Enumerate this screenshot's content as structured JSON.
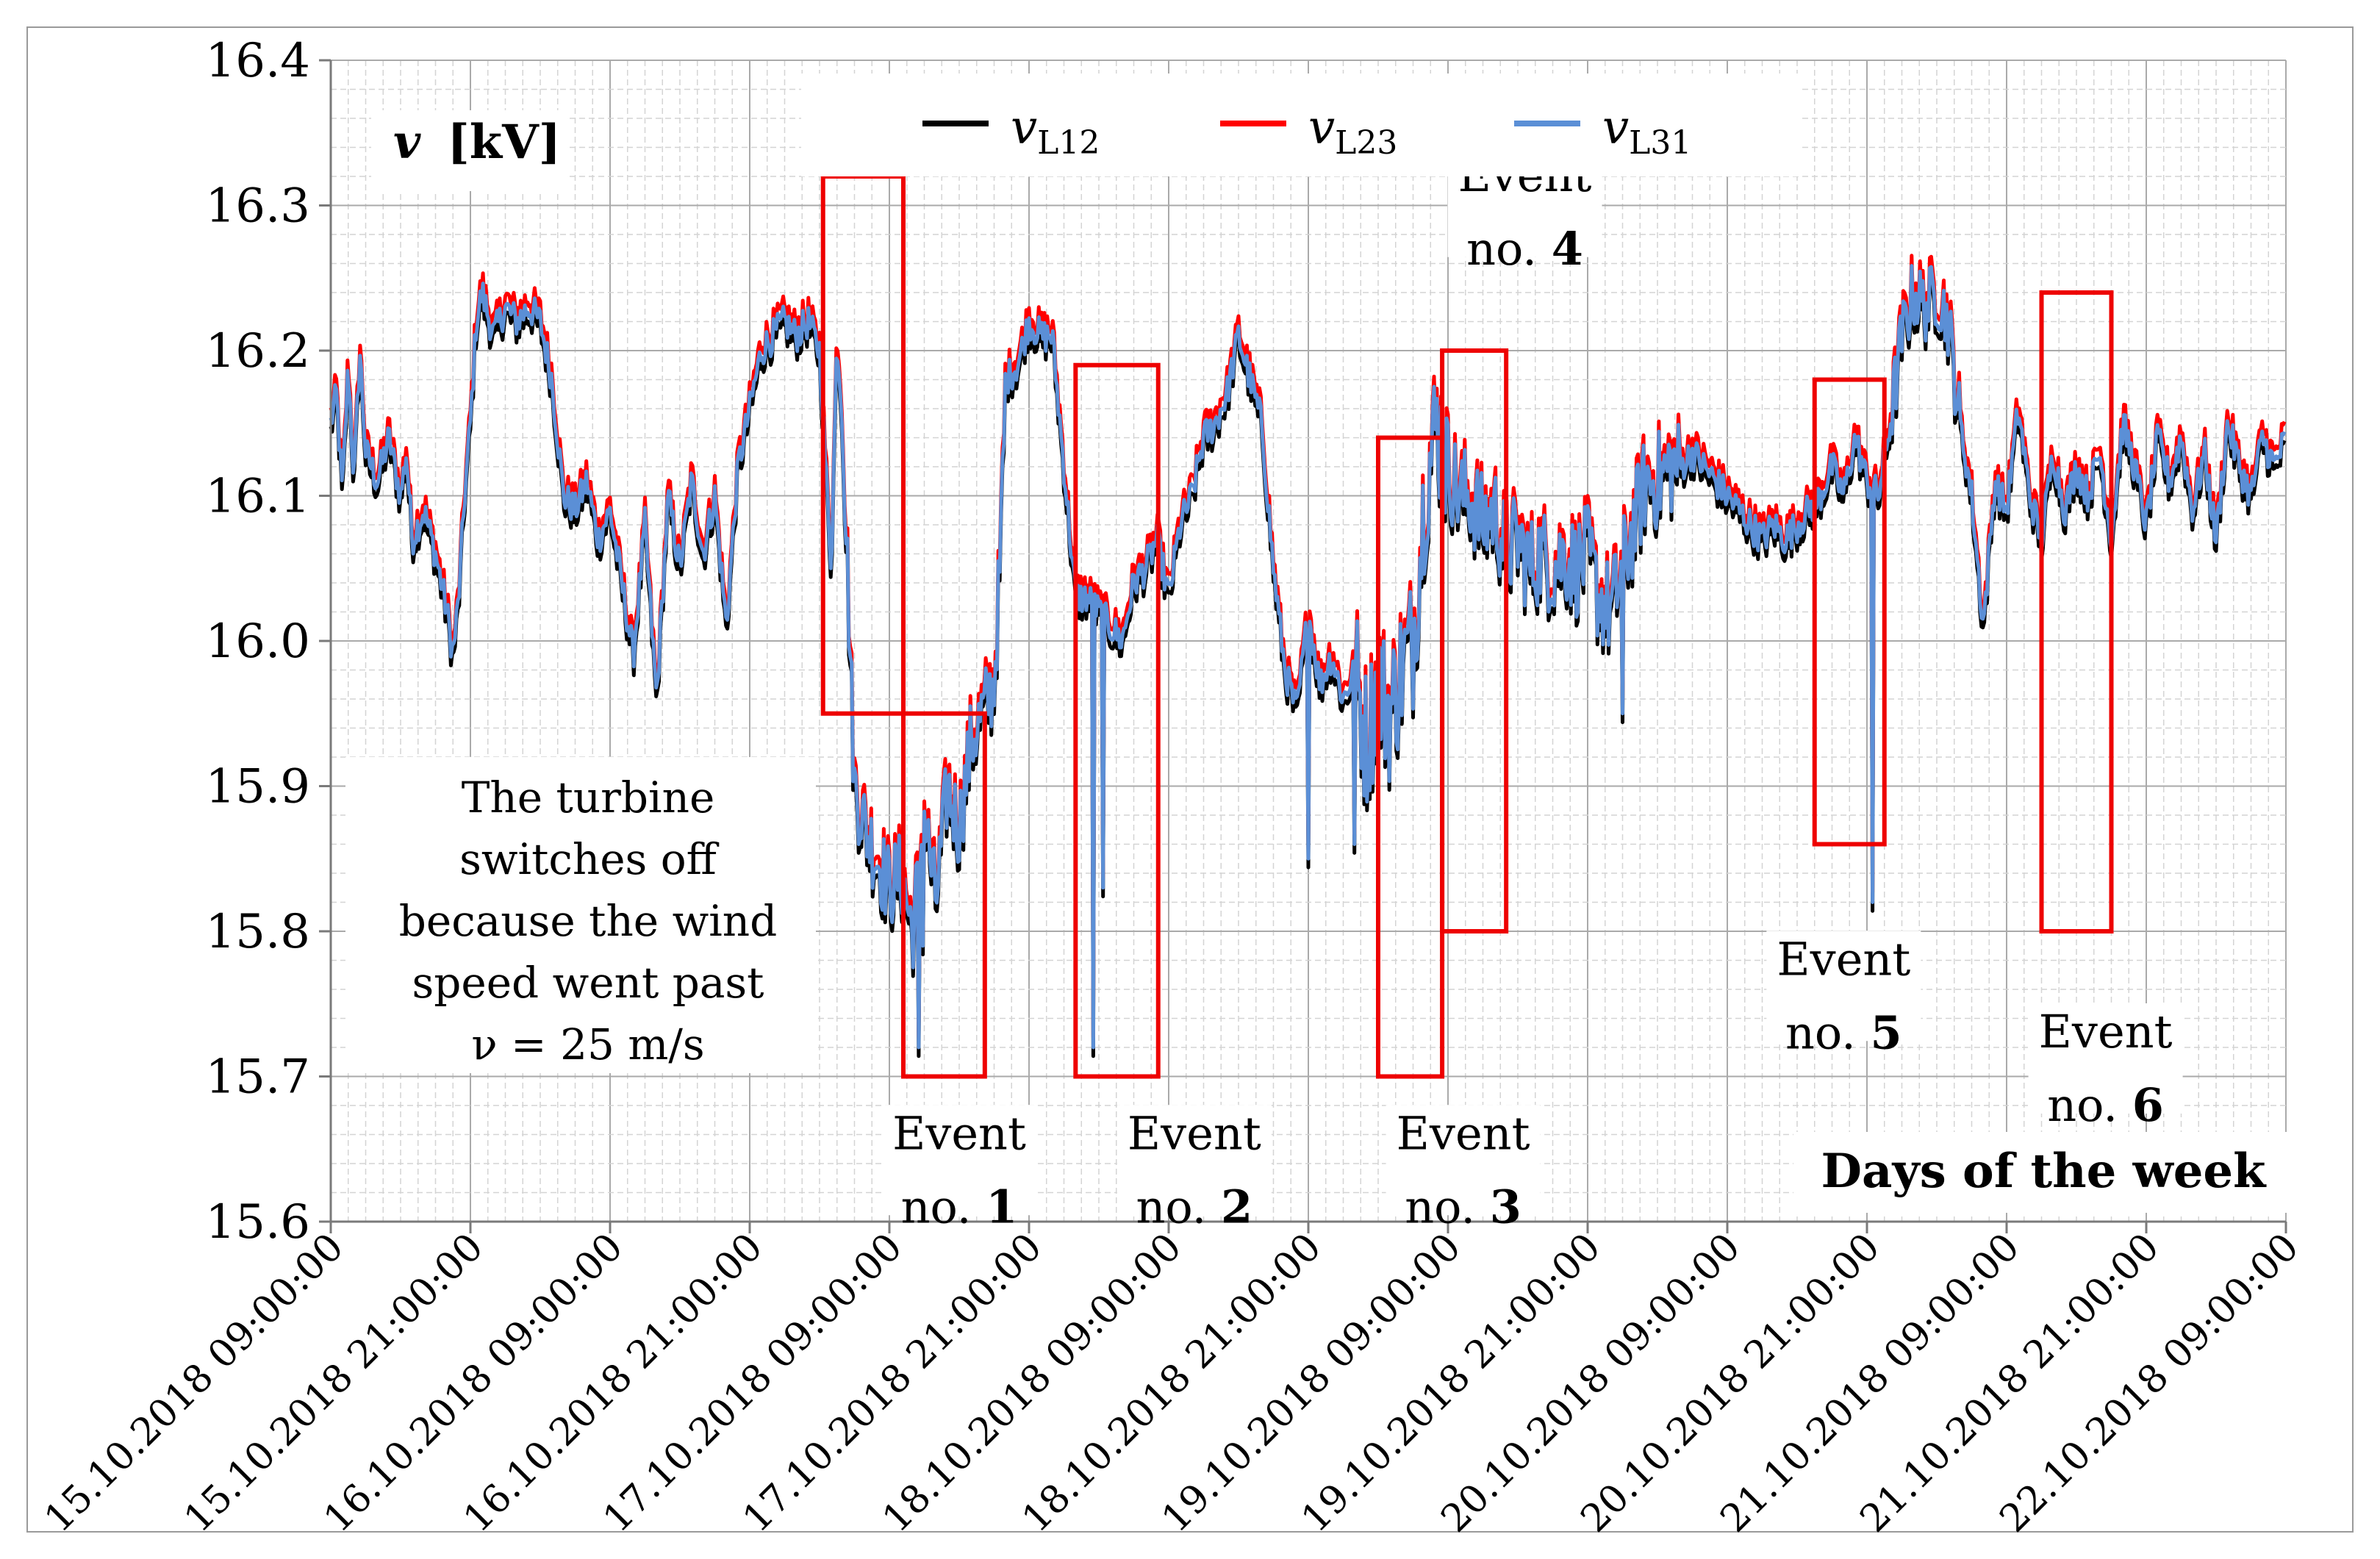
{
  "chart_data": {
    "type": "line",
    "title": "",
    "ylabel_var": "v",
    "ylabel_unit": "[kV]",
    "xlabel": "Days of the week",
    "ylim": [
      15.6,
      16.4
    ],
    "y_ticks": [
      "15.6",
      "15.7",
      "15.8",
      "15.9",
      "16.0",
      "16.1",
      "16.2",
      "16.3",
      "16.4"
    ],
    "x_range_hours": [
      0,
      168
    ],
    "x_ticks": [
      "15.10.2018 09:00:00",
      "15.10.2018 21:00:00",
      "16.10.2018 09:00:00",
      "16.10.2018 21:00:00",
      "17.10.2018 09:00:00",
      "17.10.2018 21:00:00",
      "18.10.2018 09:00:00",
      "18.10.2018 21:00:00",
      "19.10.2018 09:00:00",
      "19.10.2018 21:00:00",
      "20.10.2018 09:00:00",
      "20.10.2018 21:00:00",
      "21.10.2018 09:00:00",
      "21.10.2018 21:00:00",
      "22.10.2018 09:00:00"
    ],
    "legend_location": "top-center",
    "series": [
      {
        "name_main": "v",
        "name_sub": "L12",
        "color": "#000000"
      },
      {
        "name_main": "v",
        "name_sub": "L23",
        "color": "#ff0000"
      },
      {
        "name_main": "v",
        "name_sub": "L31",
        "color": "#5b8fd6"
      }
    ],
    "base_trace": [
      [
        0.0,
        16.15
      ],
      [
        0.5,
        16.17
      ],
      [
        1.0,
        16.1
      ],
      [
        1.5,
        16.19
      ],
      [
        2.0,
        16.11
      ],
      [
        2.5,
        16.2
      ],
      [
        3.0,
        16.13
      ],
      [
        4.0,
        16.11
      ],
      [
        5.0,
        16.14
      ],
      [
        6.0,
        16.1
      ],
      [
        6.5,
        16.13
      ],
      [
        7.0,
        16.07
      ],
      [
        8.0,
        16.09
      ],
      [
        9.0,
        16.06
      ],
      [
        10.0,
        16.02
      ],
      [
        10.5,
        15.99
      ],
      [
        11.0,
        16.03
      ],
      [
        11.5,
        16.1
      ],
      [
        12.0,
        16.15
      ],
      [
        12.5,
        16.22
      ],
      [
        13.0,
        16.24
      ],
      [
        14.0,
        16.21
      ],
      [
        15.0,
        16.23
      ],
      [
        16.0,
        16.22
      ],
      [
        17.0,
        16.23
      ],
      [
        18.0,
        16.22
      ],
      [
        19.0,
        16.18
      ],
      [
        20.0,
        16.1
      ],
      [
        21.0,
        16.09
      ],
      [
        22.0,
        16.11
      ],
      [
        23.0,
        16.07
      ],
      [
        24.0,
        16.09
      ],
      [
        25.0,
        16.04
      ],
      [
        26.0,
        15.99
      ],
      [
        27.0,
        16.08
      ],
      [
        28.0,
        15.96
      ],
      [
        29.0,
        16.1
      ],
      [
        30.0,
        16.05
      ],
      [
        31.0,
        16.11
      ],
      [
        32.0,
        16.06
      ],
      [
        33.0,
        16.1
      ],
      [
        34.0,
        16.01
      ],
      [
        35.0,
        16.12
      ],
      [
        36.0,
        16.16
      ],
      [
        37.0,
        16.2
      ],
      [
        38.0,
        16.21
      ],
      [
        39.0,
        16.22
      ],
      [
        40.0,
        16.21
      ],
      [
        41.0,
        16.22
      ],
      [
        42.0,
        16.2
      ],
      [
        43.0,
        16.05
      ],
      [
        43.5,
        16.21
      ],
      [
        44.0,
        16.15
      ],
      [
        45.0,
        15.9
      ],
      [
        46.0,
        15.87
      ],
      [
        47.0,
        15.85
      ],
      [
        48.0,
        15.83
      ],
      [
        49.0,
        15.84
      ],
      [
        50.0,
        15.8
      ],
      [
        51.0,
        15.88
      ],
      [
        52.0,
        15.82
      ],
      [
        53.0,
        15.9
      ],
      [
        54.0,
        15.87
      ],
      [
        55.0,
        15.93
      ],
      [
        56.0,
        15.95
      ],
      [
        57.0,
        15.97
      ],
      [
        57.5,
        16.05
      ],
      [
        58.0,
        16.18
      ],
      [
        59.0,
        16.19
      ],
      [
        60.0,
        16.22
      ],
      [
        61.0,
        16.21
      ],
      [
        62.0,
        16.21
      ],
      [
        63.0,
        16.12
      ],
      [
        64.0,
        16.03
      ],
      [
        65.0,
        16.03
      ],
      [
        66.0,
        16.02
      ],
      [
        67.0,
        16.01
      ],
      [
        68.0,
        16.0
      ],
      [
        69.0,
        16.04
      ],
      [
        70.0,
        16.05
      ],
      [
        71.0,
        16.07
      ],
      [
        72.0,
        16.03
      ],
      [
        73.0,
        16.08
      ],
      [
        74.0,
        16.1
      ],
      [
        75.0,
        16.14
      ],
      [
        76.0,
        16.15
      ],
      [
        77.0,
        16.17
      ],
      [
        78.0,
        16.21
      ],
      [
        79.0,
        16.18
      ],
      [
        80.0,
        16.15
      ],
      [
        81.0,
        16.05
      ],
      [
        82.0,
        15.98
      ],
      [
        83.0,
        15.95
      ],
      [
        84.0,
        16.02
      ],
      [
        85.0,
        15.97
      ],
      [
        86.0,
        15.99
      ],
      [
        87.0,
        15.96
      ],
      [
        88.0,
        15.98
      ],
      [
        89.0,
        15.93
      ],
      [
        90.0,
        15.97
      ],
      [
        91.0,
        15.95
      ],
      [
        92.0,
        15.98
      ],
      [
        93.0,
        16.0
      ],
      [
        94.0,
        16.1
      ],
      [
        95.0,
        16.15
      ],
      [
        96.0,
        16.12
      ],
      [
        97.0,
        16.1
      ],
      [
        98.0,
        16.1
      ],
      [
        99.0,
        16.08
      ],
      [
        100.0,
        16.09
      ],
      [
        101.0,
        16.06
      ],
      [
        102.0,
        16.07
      ],
      [
        103.0,
        16.05
      ],
      [
        104.0,
        16.06
      ],
      [
        105.0,
        16.05
      ],
      [
        106.0,
        16.06
      ],
      [
        107.0,
        16.05
      ],
      [
        108.0,
        16.06
      ],
      [
        109.0,
        16.03
      ],
      [
        110.0,
        16.02
      ],
      [
        111.0,
        16.05
      ],
      [
        112.0,
        16.08
      ],
      [
        113.0,
        16.11
      ],
      [
        114.0,
        16.11
      ],
      [
        115.0,
        16.12
      ],
      [
        116.0,
        16.12
      ],
      [
        117.0,
        16.13
      ],
      [
        118.0,
        16.12
      ],
      [
        119.0,
        16.11
      ],
      [
        120.0,
        16.1
      ],
      [
        121.0,
        16.09
      ],
      [
        122.0,
        16.08
      ],
      [
        123.0,
        16.07
      ],
      [
        124.0,
        16.08
      ],
      [
        125.0,
        16.07
      ],
      [
        126.0,
        16.08
      ],
      [
        127.0,
        16.09
      ],
      [
        128.0,
        16.1
      ],
      [
        129.0,
        16.12
      ],
      [
        130.0,
        16.1
      ],
      [
        131.0,
        16.14
      ],
      [
        132.0,
        16.11
      ],
      [
        133.0,
        16.1
      ],
      [
        134.0,
        16.15
      ],
      [
        135.0,
        16.21
      ],
      [
        136.0,
        16.24
      ],
      [
        137.0,
        16.23
      ],
      [
        138.0,
        16.24
      ],
      [
        139.0,
        16.22
      ],
      [
        140.0,
        16.15
      ],
      [
        141.0,
        16.1
      ],
      [
        142.0,
        16.01
      ],
      [
        143.0,
        16.11
      ],
      [
        144.0,
        16.09
      ],
      [
        145.0,
        16.16
      ],
      [
        146.0,
        16.1
      ],
      [
        147.0,
        16.07
      ],
      [
        148.0,
        16.13
      ],
      [
        149.0,
        16.09
      ],
      [
        150.0,
        16.12
      ],
      [
        151.0,
        16.1
      ],
      [
        152.0,
        16.13
      ],
      [
        153.0,
        16.07
      ],
      [
        154.0,
        16.15
      ],
      [
        155.0,
        16.12
      ],
      [
        156.0,
        16.08
      ],
      [
        157.0,
        16.14
      ],
      [
        158.0,
        16.11
      ],
      [
        159.0,
        16.14
      ],
      [
        160.0,
        16.09
      ],
      [
        161.0,
        16.13
      ],
      [
        162.0,
        16.07
      ],
      [
        163.0,
        16.15
      ],
      [
        164.0,
        16.12
      ],
      [
        165.0,
        16.1
      ],
      [
        166.0,
        16.14
      ],
      [
        167.0,
        16.12
      ],
      [
        168.0,
        16.14
      ]
    ],
    "spikes": [
      {
        "x": 43.0,
        "value": 16.05
      },
      {
        "x": 50.5,
        "value": 15.72
      },
      {
        "x": 50.9,
        "value": 15.79
      },
      {
        "x": 65.5,
        "value": 15.72
      },
      {
        "x": 66.3,
        "value": 15.83
      },
      {
        "x": 84.0,
        "value": 15.85
      },
      {
        "x": 88.0,
        "value": 15.86
      },
      {
        "x": 111.0,
        "value": 15.95
      },
      {
        "x": 132.5,
        "value": 15.82
      }
    ],
    "events": [
      {
        "label_line1": "Event",
        "label_line2_prefix": "no.",
        "number": "1",
        "box1": {
          "x0": 42.3,
          "x1": 49.2,
          "y0": 15.95,
          "y1": 16.32
        },
        "box2": {
          "x0": 49.2,
          "x1": 56.2,
          "y0": 15.7,
          "y1": 15.95
        },
        "label_x": 54.0,
        "label_y": 15.65
      },
      {
        "label_line1": "Event",
        "label_line2_prefix": "no.",
        "number": "2",
        "box1": {
          "x0": 64.0,
          "x1": 71.1,
          "y0": 15.7,
          "y1": 16.19
        },
        "label_x": 74.2,
        "label_y": 15.65
      },
      {
        "label_line1": "Event",
        "label_line2_prefix": "no.",
        "number": "3",
        "box1": {
          "x0": 90.0,
          "x1": 95.5,
          "y0": 15.7,
          "y1": 16.14
        },
        "label_x": 97.3,
        "label_y": 15.65
      },
      {
        "label_line1": "Event",
        "label_line2_prefix": "no.",
        "number": "4",
        "box1": {
          "x0": 95.5,
          "x1": 101.0,
          "y0": 15.8,
          "y1": 16.2
        },
        "label_x": 102.6,
        "label_y": 16.31
      },
      {
        "label_line1": "Event",
        "label_line2_prefix": "no.",
        "number": "5",
        "box1": {
          "x0": 127.5,
          "x1": 133.5,
          "y0": 15.86,
          "y1": 16.18
        },
        "label_x": 130.0,
        "label_y": 15.77
      },
      {
        "label_line1": "Event",
        "label_line2_prefix": "no.",
        "number": "6",
        "box1": {
          "x0": 147.0,
          "x1": 153.0,
          "y0": 15.8,
          "y1": 16.24
        },
        "label_x": 152.5,
        "label_y": 15.72
      }
    ],
    "annotation": [
      "The turbine",
      "switches off",
      "because the wind",
      "speed went past",
      "ν = 25 m/s"
    ]
  }
}
